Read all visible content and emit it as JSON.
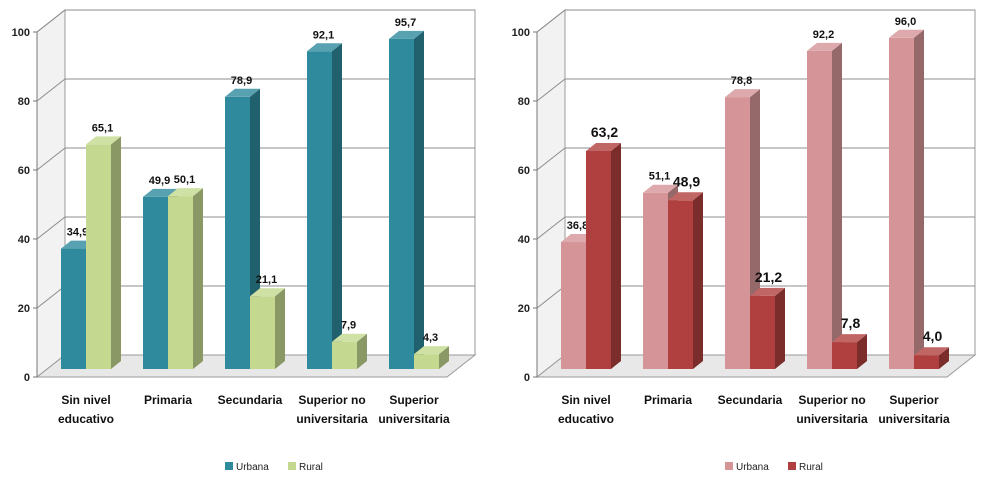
{
  "chart_data": [
    {
      "type": "bar",
      "categories": [
        [
          "Sin nivel",
          "educativo"
        ],
        [
          "Primaria"
        ],
        [
          "Secundaria"
        ],
        [
          "Superior no",
          "universitaria"
        ],
        [
          "Superior",
          "universitaria"
        ]
      ],
      "ylim": [
        0,
        100
      ],
      "yticks": [
        0,
        20,
        40,
        60,
        80,
        100
      ],
      "grid": true,
      "legend": "bottom-center",
      "series": [
        {
          "name": "Urbana",
          "values": [
            34.9,
            49.9,
            78.9,
            92.1,
            95.7
          ],
          "labels": [
            "34,9",
            "49,9",
            "78,9",
            "92,1",
            "95,7"
          ],
          "color": "#2e8a9c"
        },
        {
          "name": "Rural",
          "values": [
            65.1,
            50.1,
            21.1,
            7.9,
            4.3
          ],
          "labels": [
            "65,1",
            "50,1",
            "21,1",
            "7,9",
            "4,3"
          ],
          "color": "#c4d98f"
        }
      ]
    },
    {
      "type": "bar",
      "categories": [
        [
          "Sin nivel",
          "educativo"
        ],
        [
          "Primaria"
        ],
        [
          "Secundaria"
        ],
        [
          "Superior no",
          "universitaria"
        ],
        [
          "Superior",
          "universitaria"
        ]
      ],
      "ylim": [
        0,
        100
      ],
      "yticks": [
        0,
        20,
        40,
        60,
        80,
        100
      ],
      "grid": true,
      "legend": "bottom-center",
      "series": [
        {
          "name": "Urbana",
          "values": [
            36.8,
            51.1,
            78.8,
            92.2,
            96.0
          ],
          "labels": [
            "36,8",
            "51,1",
            "78,8",
            "92,2",
            "96,0"
          ],
          "color": "#d59497"
        },
        {
          "name": "Rural",
          "values": [
            63.2,
            48.9,
            21.2,
            7.8,
            4.0
          ],
          "labels": [
            "63,2",
            "48,9",
            "21,2",
            "7,8",
            "4,0"
          ],
          "color": "#b0403f"
        }
      ]
    }
  ]
}
